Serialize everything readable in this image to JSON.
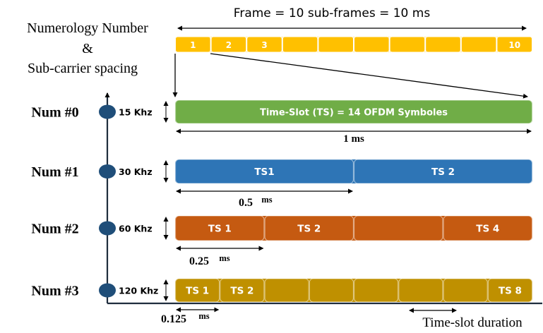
{
  "header": {
    "title": "Frame = 10 sub-frames = 10 ms",
    "side_label_line1": "Numerology Number",
    "side_label_line2": "&",
    "side_label_line3": "Sub-carrier spacing"
  },
  "frame": {
    "color": "#ffc000",
    "subframe_count": 10,
    "labels": [
      "1",
      "2",
      "3",
      "",
      "",
      "",
      "",
      "",
      "",
      "10"
    ]
  },
  "numerologies": [
    {
      "name": "Num #0",
      "scs": "15 Khz",
      "color": "#70ad47",
      "slot_count": 1,
      "slot_labels": [
        "Time-Slot (TS) = 14 OFDM Symboles"
      ],
      "duration_label": "1 ms"
    },
    {
      "name": "Num #1",
      "scs": "30 Khz",
      "color": "#2e75b6",
      "slot_count": 2,
      "slot_labels": [
        "TS1",
        "TS 2"
      ],
      "duration_label": "0.5",
      "duration_unit": "ms"
    },
    {
      "name": "Num #2",
      "scs": "60 Khz",
      "color": "#c55a11",
      "slot_count": 4,
      "slot_labels": [
        "TS 1",
        "TS 2",
        "",
        "TS 4"
      ],
      "duration_label": "0.25",
      "duration_unit": "ms"
    },
    {
      "name": "Num #3",
      "scs": "120 Khz",
      "color": "#bf9000",
      "slot_count": 8,
      "slot_labels": [
        "TS 1",
        "TS 2",
        "",
        "",
        "",
        "",
        "",
        "TS 8"
      ],
      "duration_label": "0.125",
      "duration_unit": "ms"
    }
  ],
  "footer": {
    "legend": "Time-slot duration"
  },
  "colors": {
    "axis": "#1f2d3d",
    "dot": "#1f4e79",
    "text": "#000000",
    "bar_text": "#ffffff"
  }
}
